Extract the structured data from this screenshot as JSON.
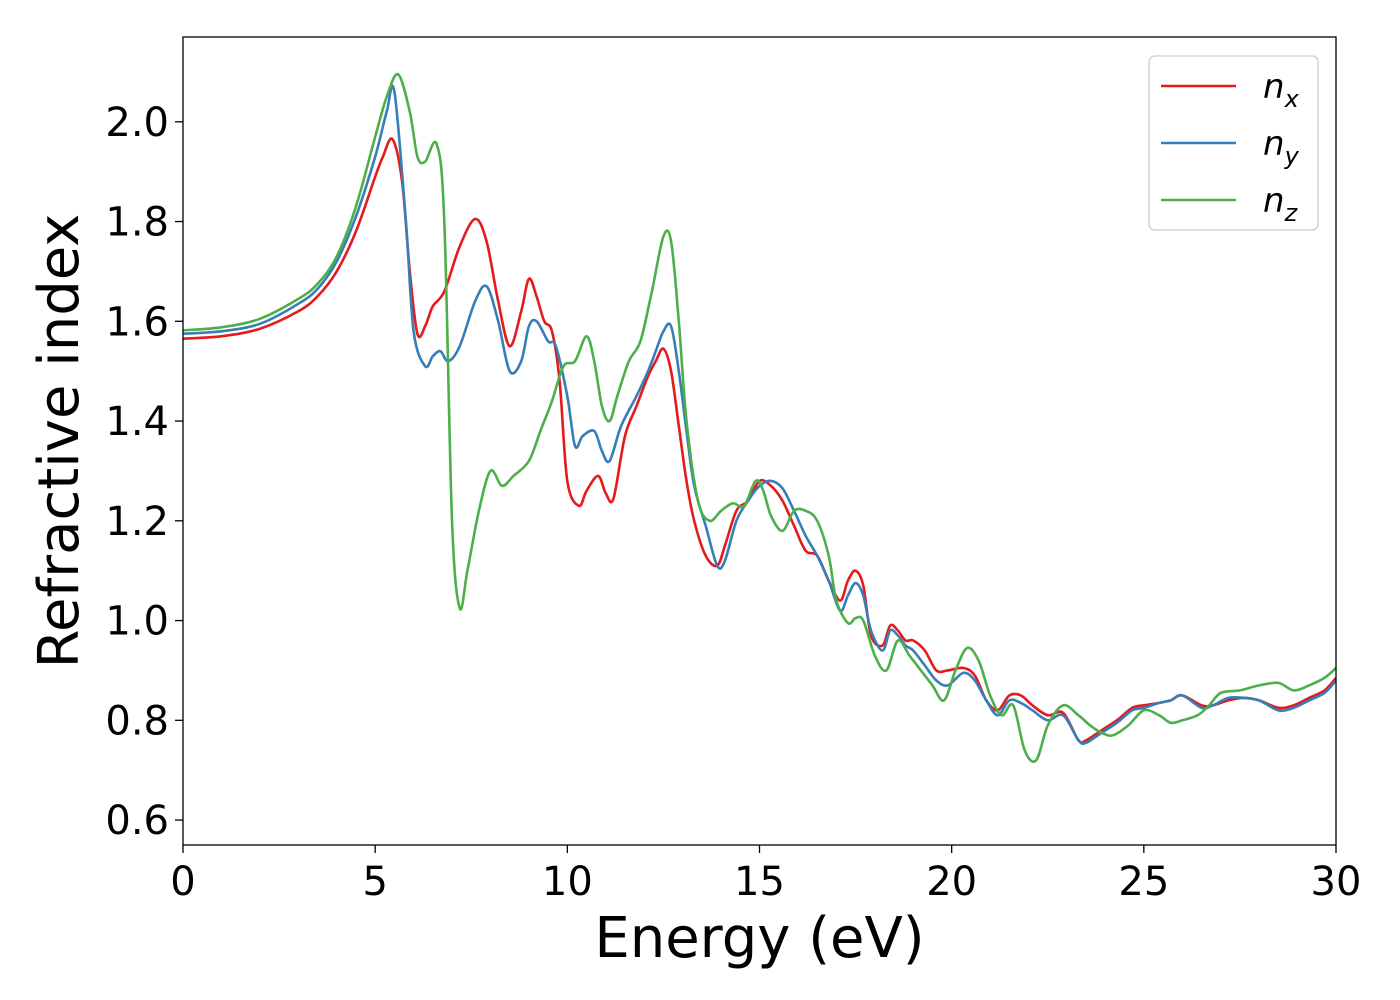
{
  "chart_data": {
    "type": "line",
    "title": "",
    "xlabel": "Energy (eV)",
    "ylabel": "Refractive index",
    "xlim": [
      0,
      30
    ],
    "ylim": [
      0.55,
      2.17
    ],
    "xticks": [
      0,
      5,
      10,
      15,
      20,
      25,
      30
    ],
    "xtick_labels": [
      "0",
      "5",
      "10",
      "15",
      "20",
      "25",
      "30"
    ],
    "yticks": [
      0.6,
      0.8,
      1.0,
      1.2,
      1.4,
      1.6,
      1.8,
      2.0
    ],
    "ytick_labels": [
      "0.6",
      "0.8",
      "1.0",
      "1.2",
      "1.4",
      "1.6",
      "1.8",
      "2.0"
    ],
    "grid": false,
    "legend": "top-right",
    "series": [
      {
        "name": "n",
        "subscript": "x",
        "color": "#e41a1c",
        "x": [
          0,
          1,
          2,
          3,
          3.5,
          4,
          4.5,
          5,
          5.2,
          5.45,
          5.7,
          5.9,
          6.1,
          6.3,
          6.5,
          6.8,
          7.2,
          7.6,
          7.9,
          8.2,
          8.5,
          8.8,
          9.0,
          9.2,
          9.4,
          9.6,
          9.8,
          10.0,
          10.3,
          10.5,
          10.8,
          11.0,
          11.2,
          11.5,
          11.8,
          12.1,
          12.3,
          12.5,
          12.7,
          12.9,
          13.1,
          13.3,
          13.6,
          13.9,
          14.1,
          14.4,
          14.7,
          15.0,
          15.3,
          15.6,
          15.9,
          16.2,
          16.5,
          16.8,
          17.1,
          17.3,
          17.5,
          17.7,
          17.9,
          18.2,
          18.4,
          18.6,
          18.8,
          19.0,
          19.3,
          19.6,
          19.9,
          20.3,
          20.6,
          20.9,
          21.2,
          21.5,
          21.8,
          22.1,
          22.5,
          22.9,
          23.3,
          23.5,
          23.9,
          24.3,
          24.7,
          25.0,
          25.4,
          25.7,
          26.0,
          26.5,
          26.8,
          27.2,
          27.6,
          28.0,
          28.5,
          28.9,
          29.3,
          29.7,
          30.0
        ],
        "values": [
          1.565,
          1.57,
          1.585,
          1.62,
          1.65,
          1.7,
          1.78,
          1.89,
          1.93,
          1.965,
          1.88,
          1.7,
          1.575,
          1.59,
          1.63,
          1.66,
          1.75,
          1.805,
          1.76,
          1.64,
          1.55,
          1.62,
          1.685,
          1.65,
          1.6,
          1.58,
          1.48,
          1.28,
          1.23,
          1.26,
          1.29,
          1.255,
          1.245,
          1.37,
          1.43,
          1.49,
          1.52,
          1.545,
          1.5,
          1.39,
          1.28,
          1.2,
          1.13,
          1.11,
          1.15,
          1.22,
          1.24,
          1.28,
          1.27,
          1.24,
          1.19,
          1.14,
          1.13,
          1.08,
          1.04,
          1.08,
          1.1,
          1.07,
          0.97,
          0.95,
          0.99,
          0.98,
          0.96,
          0.96,
          0.94,
          0.9,
          0.9,
          0.905,
          0.89,
          0.84,
          0.82,
          0.85,
          0.85,
          0.83,
          0.81,
          0.815,
          0.76,
          0.76,
          0.78,
          0.8,
          0.825,
          0.83,
          0.835,
          0.84,
          0.85,
          0.83,
          0.83,
          0.84,
          0.845,
          0.84,
          0.825,
          0.83,
          0.845,
          0.86,
          0.885
        ]
      },
      {
        "name": "n",
        "subscript": "y",
        "color": "#377eb8",
        "x": [
          0,
          1,
          2,
          3,
          3.5,
          4,
          4.5,
          5,
          5.3,
          5.5,
          5.8,
          6.0,
          6.3,
          6.5,
          6.7,
          6.9,
          7.2,
          7.6,
          7.9,
          8.2,
          8.5,
          8.8,
          9.0,
          9.2,
          9.5,
          9.7,
          10.0,
          10.2,
          10.4,
          10.7,
          10.9,
          11.1,
          11.4,
          11.8,
          12.1,
          12.3,
          12.5,
          12.7,
          12.9,
          13.1,
          13.3,
          13.6,
          13.9,
          14.1,
          14.4,
          14.7,
          15.0,
          15.3,
          15.6,
          15.9,
          16.2,
          16.5,
          16.8,
          17.1,
          17.3,
          17.5,
          17.7,
          17.9,
          18.2,
          18.4,
          18.6,
          18.8,
          19.0,
          19.3,
          19.6,
          19.9,
          20.3,
          20.6,
          20.9,
          21.2,
          21.5,
          21.8,
          22.1,
          22.5,
          22.9,
          23.3,
          23.5,
          23.9,
          24.3,
          24.7,
          25.0,
          25.4,
          25.7,
          26.0,
          26.5,
          26.8,
          27.2,
          27.6,
          28.0,
          28.5,
          28.9,
          29.3,
          29.7,
          30.0
        ],
        "values": [
          1.575,
          1.58,
          1.595,
          1.635,
          1.665,
          1.72,
          1.81,
          1.93,
          2.02,
          2.06,
          1.8,
          1.58,
          1.51,
          1.53,
          1.54,
          1.52,
          1.55,
          1.64,
          1.67,
          1.6,
          1.5,
          1.52,
          1.59,
          1.6,
          1.56,
          1.55,
          1.45,
          1.35,
          1.37,
          1.38,
          1.34,
          1.32,
          1.39,
          1.45,
          1.5,
          1.54,
          1.58,
          1.59,
          1.5,
          1.38,
          1.27,
          1.19,
          1.11,
          1.12,
          1.2,
          1.24,
          1.27,
          1.28,
          1.265,
          1.22,
          1.17,
          1.13,
          1.08,
          1.02,
          1.05,
          1.075,
          1.05,
          0.98,
          0.94,
          0.98,
          0.97,
          0.95,
          0.94,
          0.91,
          0.88,
          0.87,
          0.895,
          0.88,
          0.84,
          0.81,
          0.84,
          0.835,
          0.82,
          0.8,
          0.81,
          0.76,
          0.755,
          0.775,
          0.795,
          0.82,
          0.825,
          0.835,
          0.84,
          0.85,
          0.825,
          0.83,
          0.845,
          0.845,
          0.84,
          0.82,
          0.825,
          0.84,
          0.855,
          0.88
        ]
      },
      {
        "name": "n",
        "subscript": "z",
        "color": "#4daf4a",
        "x": [
          0,
          1,
          2,
          3,
          3.5,
          4,
          4.5,
          5,
          5.3,
          5.6,
          5.9,
          6.1,
          6.3,
          6.6,
          6.8,
          7.0,
          7.2,
          7.4,
          7.7,
          8.0,
          8.3,
          8.6,
          9.0,
          9.3,
          9.6,
          9.9,
          10.2,
          10.5,
          10.7,
          10.9,
          11.1,
          11.3,
          11.6,
          11.9,
          12.2,
          12.5,
          12.7,
          12.9,
          13.1,
          13.4,
          13.7,
          14.0,
          14.3,
          14.6,
          14.9,
          15.1,
          15.3,
          15.6,
          15.9,
          16.2,
          16.5,
          16.8,
          17.0,
          17.3,
          17.5,
          17.7,
          18.0,
          18.3,
          18.6,
          18.9,
          19.2,
          19.5,
          19.8,
          20.1,
          20.4,
          20.7,
          21.0,
          21.3,
          21.6,
          21.9,
          22.2,
          22.5,
          22.9,
          23.3,
          23.6,
          23.9,
          24.2,
          24.6,
          25.0,
          25.4,
          25.7,
          26.0,
          26.4,
          26.7,
          27.0,
          27.5,
          28.0,
          28.5,
          28.9,
          29.3,
          29.7,
          30.0
        ],
        "values": [
          1.582,
          1.588,
          1.605,
          1.645,
          1.675,
          1.73,
          1.83,
          1.97,
          2.05,
          2.095,
          2.02,
          1.93,
          1.92,
          1.955,
          1.8,
          1.2,
          1.025,
          1.1,
          1.22,
          1.3,
          1.27,
          1.29,
          1.32,
          1.38,
          1.44,
          1.51,
          1.52,
          1.57,
          1.52,
          1.43,
          1.4,
          1.45,
          1.52,
          1.56,
          1.66,
          1.77,
          1.76,
          1.6,
          1.4,
          1.24,
          1.2,
          1.22,
          1.235,
          1.23,
          1.28,
          1.26,
          1.21,
          1.18,
          1.22,
          1.22,
          1.2,
          1.13,
          1.04,
          0.995,
          1.005,
          1.0,
          0.93,
          0.9,
          0.96,
          0.93,
          0.9,
          0.87,
          0.84,
          0.9,
          0.945,
          0.92,
          0.85,
          0.81,
          0.83,
          0.74,
          0.72,
          0.79,
          0.83,
          0.81,
          0.79,
          0.775,
          0.77,
          0.79,
          0.82,
          0.81,
          0.795,
          0.8,
          0.81,
          0.83,
          0.855,
          0.86,
          0.87,
          0.875,
          0.86,
          0.87,
          0.885,
          0.905
        ]
      }
    ]
  }
}
